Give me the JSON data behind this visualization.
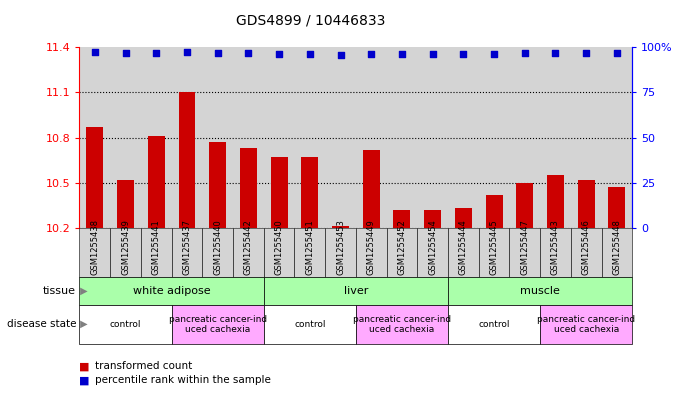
{
  "title": "GDS4899 / 10446833",
  "samples": [
    "GSM1255438",
    "GSM1255439",
    "GSM1255441",
    "GSM1255437",
    "GSM1255440",
    "GSM1255442",
    "GSM1255450",
    "GSM1255451",
    "GSM1255453",
    "GSM1255449",
    "GSM1255452",
    "GSM1255454",
    "GSM1255444",
    "GSM1255445",
    "GSM1255447",
    "GSM1255443",
    "GSM1255446",
    "GSM1255448"
  ],
  "bar_values": [
    10.87,
    10.52,
    10.81,
    11.1,
    10.77,
    10.73,
    10.67,
    10.67,
    10.21,
    10.72,
    10.32,
    10.32,
    10.33,
    10.42,
    10.5,
    10.55,
    10.52,
    10.47
  ],
  "blue_values": [
    97.5,
    96.8,
    96.9,
    97.3,
    96.6,
    96.5,
    96.1,
    96.3,
    95.8,
    96.4,
    96.0,
    96.3,
    96.2,
    96.4,
    96.6,
    96.8,
    96.5,
    96.7
  ],
  "ylim_left": [
    10.2,
    11.4
  ],
  "ylim_right": [
    0,
    100
  ],
  "yticks_left": [
    10.2,
    10.5,
    10.8,
    11.1,
    11.4
  ],
  "yticks_right": [
    0,
    25,
    50,
    75,
    100
  ],
  "bar_color": "#cc0000",
  "blue_color": "#0000cc",
  "bar_baseline": 10.2,
  "tissue_groups": [
    {
      "label": "white adipose",
      "start": 0,
      "end": 6,
      "color": "#aaffaa"
    },
    {
      "label": "liver",
      "start": 6,
      "end": 12,
      "color": "#aaffaa"
    },
    {
      "label": "muscle",
      "start": 12,
      "end": 18,
      "color": "#aaffaa"
    }
  ],
  "disease_groups": [
    {
      "label": "control",
      "start": 0,
      "end": 3,
      "color": "#ffffff"
    },
    {
      "label": "pancreatic cancer-ind\nuced cachexia",
      "start": 3,
      "end": 6,
      "color": "#ffaaff"
    },
    {
      "label": "control",
      "start": 6,
      "end": 9,
      "color": "#ffffff"
    },
    {
      "label": "pancreatic cancer-ind\nuced cachexia",
      "start": 9,
      "end": 12,
      "color": "#ffaaff"
    },
    {
      "label": "control",
      "start": 12,
      "end": 15,
      "color": "#ffffff"
    },
    {
      "label": "pancreatic cancer-ind\nuced cachexia",
      "start": 15,
      "end": 18,
      "color": "#ffaaff"
    }
  ]
}
